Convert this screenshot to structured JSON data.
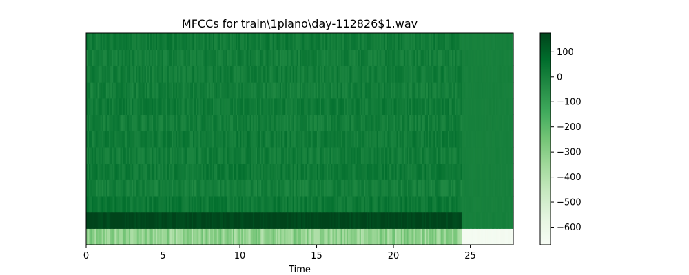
{
  "chart_data": {
    "type": "heatmap",
    "title": "MFCCs for train\\1piano\\day-112826$1.wav",
    "xlabel": "Time",
    "ylabel": "",
    "xlim": [
      0,
      27.8
    ],
    "x_ticks": [
      0,
      5,
      10,
      15,
      20,
      25
    ],
    "x_tick_labels": [
      "0",
      "5",
      "10",
      "15",
      "20",
      "25"
    ],
    "n_coefficients": 13,
    "colormap": "Greens",
    "colorbar": {
      "vmin": -670,
      "vmax": 175,
      "ticks": [
        100,
        0,
        -100,
        -200,
        -300,
        -400,
        -500,
        -600
      ],
      "tick_labels": [
        "100",
        "0",
        "−100",
        "−200",
        "−300",
        "−400",
        "−500",
        "−600"
      ]
    },
    "signal_end_time": 24.5,
    "coefficient_means": [
      -320,
      170,
      30,
      5,
      25,
      15,
      20,
      10,
      20,
      10,
      15,
      10,
      20
    ],
    "coefficient_means_after_end": [
      -650,
      0,
      0,
      0,
      0,
      0,
      0,
      0,
      0,
      0,
      0,
      0,
      0
    ]
  }
}
